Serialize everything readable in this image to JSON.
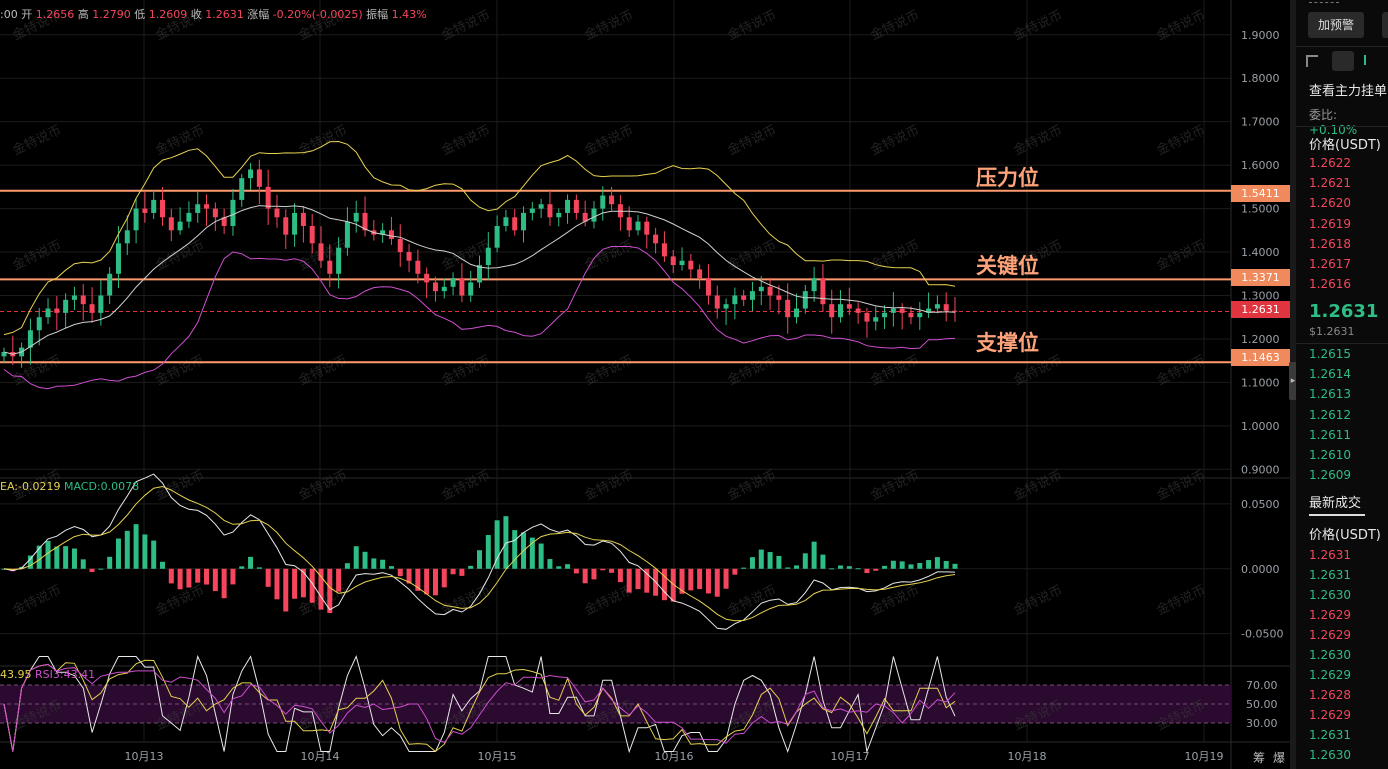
{
  "info_bar": {
    "time": ":00",
    "open_label": "开",
    "open": "1.2656",
    "high_label": "高",
    "high": "1.2790",
    "low_label": "低",
    "low": "1.2609",
    "close_label": "收",
    "close": "1.2631",
    "change_label": "涨幅",
    "change": "-0.20%(-0.0025)",
    "amp_label": "振幅",
    "amp": "1.43%"
  },
  "macd_info": {
    "dea": "EA:-0.0219",
    "macd": "MACD:0.0078"
  },
  "rsi_info": {
    "rsi1": "43.95",
    "rsi3": "RSI3:43.41"
  },
  "annotations": {
    "resistance": "压力位",
    "key": "关键位",
    "support": "支撑位"
  },
  "price_tags": {
    "resistance": "1.5411",
    "key": "1.3371",
    "current": "1.2631",
    "support": "1.1463"
  },
  "watermark": "金特说币",
  "bottom_right": [
    "筹",
    "爆"
  ],
  "sidebar": {
    "alert_button": "加预警",
    "depth_title": "查看主力挂单",
    "ratio_label": "委比:",
    "ratio_value": "+0.10%",
    "price_header": "价格(USDT)",
    "asks": [
      "1.2622",
      "1.2621",
      "1.2620",
      "1.2619",
      "1.2618",
      "1.2617",
      "1.2616"
    ],
    "last_price": "1.2631",
    "last_usd": "$1.2631",
    "bids": [
      "1.2615",
      "1.2614",
      "1.2613",
      "1.2612",
      "1.2611",
      "1.2610",
      "1.2609"
    ],
    "trades_tab": "最新成交",
    "trades_header": "价格(USDT)",
    "trades": [
      {
        "p": "1.2631",
        "c": "dn"
      },
      {
        "p": "1.2631",
        "c": "up"
      },
      {
        "p": "1.2630",
        "c": "up"
      },
      {
        "p": "1.2629",
        "c": "dn"
      },
      {
        "p": "1.2629",
        "c": "dn"
      },
      {
        "p": "1.2630",
        "c": "up"
      },
      {
        "p": "1.2629",
        "c": "up"
      },
      {
        "p": "1.2628",
        "c": "dn"
      },
      {
        "p": "1.2629",
        "c": "dn"
      },
      {
        "p": "1.2631",
        "c": "up"
      },
      {
        "p": "1.2630",
        "c": "up"
      }
    ]
  },
  "chart_data": {
    "type": "candlestick",
    "price_axis": {
      "ticks": [
        "1.9000",
        "1.8000",
        "1.7000",
        "1.6000",
        "1.5000",
        "1.4000",
        "1.3000",
        "1.2000",
        "1.1000",
        "1.0000",
        "0.9000"
      ],
      "range": [
        0.88,
        1.98
      ]
    },
    "macd_axis": {
      "ticks": [
        "0.0500",
        "0.0000",
        "-0.0500"
      ],
      "range": [
        -0.075,
        0.07
      ]
    },
    "rsi_axis": {
      "ticks": [
        "70.00",
        "50.00",
        "30.00"
      ],
      "range": [
        10,
        90
      ]
    },
    "x_ticks": [
      "10月13",
      "10月14",
      "10月15",
      "10月16",
      "10月17",
      "10月18",
      "10月19"
    ],
    "levels": {
      "resistance": 1.5411,
      "key": 1.3371,
      "current": 1.2631,
      "support": 1.1463
    },
    "candles_close_path": [
      1.17,
      1.16,
      1.18,
      1.22,
      1.25,
      1.27,
      1.26,
      1.29,
      1.3,
      1.28,
      1.26,
      1.3,
      1.35,
      1.42,
      1.45,
      1.5,
      1.49,
      1.52,
      1.48,
      1.45,
      1.47,
      1.49,
      1.51,
      1.5,
      1.48,
      1.46,
      1.52,
      1.57,
      1.59,
      1.55,
      1.5,
      1.48,
      1.44,
      1.49,
      1.46,
      1.42,
      1.38,
      1.35,
      1.41,
      1.47,
      1.49,
      1.45,
      1.44,
      1.45,
      1.43,
      1.4,
      1.38,
      1.35,
      1.33,
      1.31,
      1.32,
      1.34,
      1.3,
      1.33,
      1.37,
      1.41,
      1.46,
      1.48,
      1.45,
      1.49,
      1.5,
      1.51,
      1.48,
      1.49,
      1.52,
      1.49,
      1.47,
      1.5,
      1.53,
      1.51,
      1.48,
      1.45,
      1.47,
      1.44,
      1.42,
      1.39,
      1.37,
      1.38,
      1.36,
      1.34,
      1.3,
      1.27,
      1.28,
      1.3,
      1.29,
      1.31,
      1.32,
      1.3,
      1.29,
      1.25,
      1.27,
      1.31,
      1.34,
      1.28,
      1.25,
      1.28,
      1.27,
      1.26,
      1.24,
      1.25,
      1.26,
      1.27,
      1.26,
      1.25,
      1.26,
      1.27,
      1.28,
      1.265,
      1.2631
    ]
  }
}
